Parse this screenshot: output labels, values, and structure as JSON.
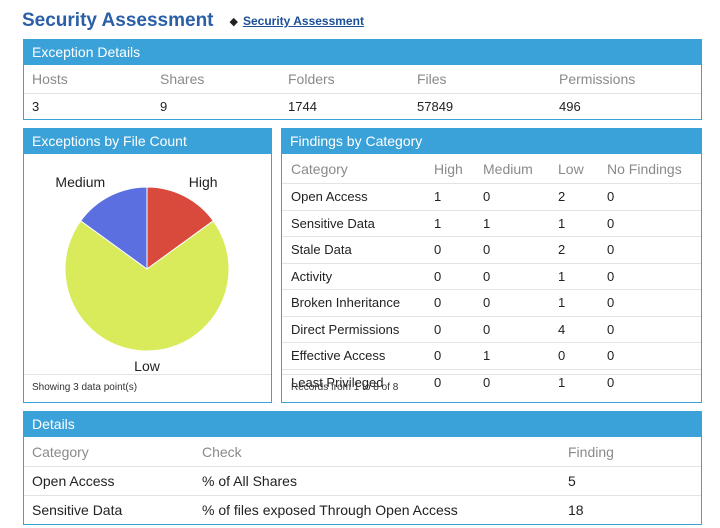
{
  "header": {
    "title": "Security Assessment",
    "tag_icon": "tag-icon",
    "link_label": "Security Assessment"
  },
  "exception_details": {
    "title": "Exception Details",
    "columns": [
      "Hosts",
      "Shares",
      "Folders",
      "Files",
      "Permissions"
    ],
    "values": [
      "3",
      "9",
      "1744",
      "57849",
      "496"
    ]
  },
  "pie_panel": {
    "title": "Exceptions by File Count",
    "footer": "Showing 3 data point(s)"
  },
  "chart_data": {
    "type": "pie",
    "title": "",
    "slices": [
      {
        "label": "High",
        "value": 15,
        "color": "#d94a3d"
      },
      {
        "label": "Low",
        "value": 70,
        "color": "#d9ea5b"
      },
      {
        "label": "Medium",
        "value": 15,
        "color": "#5b6fe0"
      }
    ]
  },
  "findings": {
    "title": "Findings by Category",
    "columns": [
      "Category",
      "High",
      "Medium",
      "Low",
      "No Findings"
    ],
    "rows": [
      [
        "Open Access",
        "1",
        "0",
        "2",
        "0"
      ],
      [
        "Sensitive Data",
        "1",
        "1",
        "1",
        "0"
      ],
      [
        "Stale Data",
        "0",
        "0",
        "2",
        "0"
      ],
      [
        "Activity",
        "0",
        "0",
        "1",
        "0"
      ],
      [
        "Broken Inheritance",
        "0",
        "0",
        "1",
        "0"
      ],
      [
        "Direct Permissions",
        "0",
        "0",
        "4",
        "0"
      ],
      [
        "Effective Access",
        "0",
        "1",
        "0",
        "0"
      ],
      [
        "Least Privileged",
        "0",
        "0",
        "1",
        "0"
      ]
    ],
    "footer": "Records from 1 to 8 of 8"
  },
  "details": {
    "title": "Details",
    "columns": [
      "Category",
      "Check",
      "Finding"
    ],
    "rows": [
      [
        "Open Access",
        "% of All Shares",
        "5"
      ],
      [
        "Sensitive Data",
        "% of files exposed Through Open Access",
        "18"
      ]
    ]
  }
}
